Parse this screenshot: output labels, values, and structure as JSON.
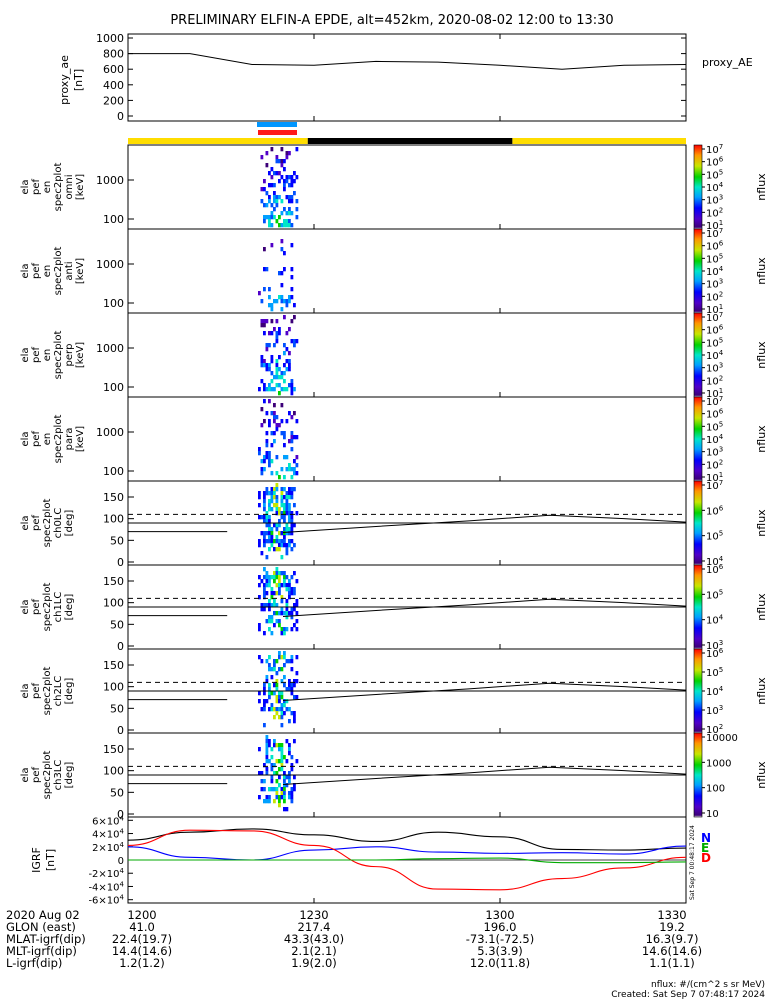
{
  "title": "PRELIMINARY ELFIN-A EPDE, alt=452km, 2020-08-02 12:00 to 13:30",
  "colors": {
    "science_zone_bar": "#ffdd00",
    "eclipse_bar": "#000000",
    "fgm_bar_blue": "#0096ff",
    "fgm_bar_red": "#ff1a1a",
    "igrf_n": "#000000",
    "igrf_e": "#0000ff",
    "igrf_z": "#ff0000",
    "igrf_d": "#00aa00"
  },
  "time_axis": {
    "ticks": [
      "1200",
      "1230",
      "1300",
      "1330"
    ],
    "start": "12:00",
    "end": "13:30"
  },
  "ephemeris": {
    "date_label": "2020 Aug 02",
    "rows": [
      {
        "label": "GLON (east)",
        "values": [
          "41.0",
          "217.4",
          "196.0",
          "19.2"
        ]
      },
      {
        "label": "MLAT-igrf(dip)",
        "values": [
          "22.4(19.7)",
          "43.3(43.0)",
          "-73.1(-72.5)",
          "16.3(9.7)"
        ]
      },
      {
        "label": "MLT-igrf(dip)",
        "values": [
          "14.4(14.6)",
          "2.1(2.1)",
          "5.3(3.9)",
          "14.6(14.6)"
        ]
      },
      {
        "label": "L-igrf(dip)",
        "values": [
          "1.2(1.2)",
          "1.9(2.0)",
          "12.0(11.8)",
          "1.1(1.1)"
        ]
      }
    ]
  },
  "footer": {
    "units": "nflux: #/(cm^2 s sr MeV)",
    "created": "Created: Sat Sep  7 07:48:17 2024",
    "side_stamp": "Sat Sep  7 00:48:17 2024"
  },
  "chart_data": [
    {
      "type": "line",
      "ylabel": "proxy_ae [nT]",
      "series": [
        {
          "name": "proxy_AE",
          "x_min": [
            0,
            10,
            20,
            30,
            40,
            50,
            60,
            70,
            80,
            90
          ],
          "values": [
            800,
            800,
            660,
            650,
            700,
            690,
            650,
            600,
            650,
            660
          ]
        }
      ],
      "yticks": [
        "1000",
        "800",
        "600",
        "400",
        "200",
        "0"
      ],
      "ylim": [
        0,
        1100
      ]
    },
    {
      "type": "heatmap",
      "ylabel": "ela pef en spec2plot omni [keV]",
      "yticks": [
        "1000",
        "100"
      ],
      "cbar_label": "nflux",
      "cbar_ticks": [
        "10^1",
        "10^2",
        "10^3",
        "10^4",
        "10^5",
        "10^6",
        "10^7"
      ]
    },
    {
      "type": "heatmap",
      "ylabel": "ela pef en spec2plot anti [keV]",
      "yticks": [
        "1000",
        "100"
      ],
      "cbar_label": "nflux",
      "cbar_ticks": [
        "10^1",
        "10^2",
        "10^3",
        "10^4",
        "10^5",
        "10^6",
        "10^7"
      ]
    },
    {
      "type": "heatmap",
      "ylabel": "ela pef en spec2plot perp [keV]",
      "yticks": [
        "1000",
        "100"
      ],
      "cbar_label": "nflux",
      "cbar_ticks": [
        "10^1",
        "10^2",
        "10^3",
        "10^4",
        "10^5",
        "10^6",
        "10^7"
      ]
    },
    {
      "type": "heatmap",
      "ylabel": "ela pef en spec2plot para [keV]",
      "yticks": [
        "1000",
        "100"
      ],
      "cbar_label": "nflux",
      "cbar_ticks": [
        "10^1",
        "10^2",
        "10^3",
        "10^4",
        "10^5",
        "10^6",
        "10^7"
      ]
    },
    {
      "type": "heatmap",
      "ylabel": "ela pef spec2plot ch0LC [deg]",
      "yticks": [
        "150",
        "100",
        "50",
        "0"
      ],
      "cbar_label": "nflux",
      "cbar_ticks": [
        "10^4",
        "10^5",
        "10^6",
        "10^7"
      ]
    },
    {
      "type": "heatmap",
      "ylabel": "ela pef spec2plot ch1LC [deg]",
      "yticks": [
        "150",
        "100",
        "50",
        "0"
      ],
      "cbar_label": "nflux",
      "cbar_ticks": [
        "10^3",
        "10^4",
        "10^5",
        "10^6"
      ]
    },
    {
      "type": "heatmap",
      "ylabel": "ela pef spec2plot ch2LC [deg]",
      "yticks": [
        "150",
        "100",
        "50",
        "0"
      ],
      "cbar_label": "nflux",
      "cbar_ticks": [
        "10^2",
        "10^3",
        "10^4",
        "10^5",
        "10^6"
      ]
    },
    {
      "type": "heatmap",
      "ylabel": "ela pef spec2plot ch3LC [deg]",
      "yticks": [
        "150",
        "100",
        "50",
        "0"
      ],
      "cbar_label": "nflux",
      "cbar_ticks": [
        "10",
        "100",
        "1000",
        "10000"
      ]
    },
    {
      "type": "line",
      "ylabel": "IGRF [nT]",
      "yticks": [
        "6x10^4",
        "4x10^4",
        "2x10^4",
        "0",
        "-2x10^4",
        "-4x10^4",
        "-6x10^4"
      ],
      "legend": [
        "N",
        "E",
        "D"
      ],
      "ylim": [
        -65000,
        65000
      ],
      "series": [
        {
          "name": "N",
          "x_min": [
            0,
            10,
            20,
            30,
            40,
            50,
            60,
            70,
            80,
            90
          ],
          "values": [
            30000,
            42000,
            47000,
            38000,
            28000,
            42000,
            35000,
            16000,
            15000,
            18000
          ]
        },
        {
          "name": "E",
          "x_min": [
            0,
            10,
            20,
            30,
            40,
            50,
            60,
            70,
            80,
            90
          ],
          "values": [
            20000,
            4000,
            0,
            15000,
            20000,
            12000,
            10000,
            11000,
            9000,
            21000
          ]
        },
        {
          "name": "Z",
          "x_min": [
            0,
            10,
            20,
            30,
            40,
            50,
            60,
            70,
            80,
            90
          ],
          "values": [
            22000,
            45000,
            44000,
            22000,
            -10000,
            -44000,
            -45000,
            -28000,
            -12000,
            4000
          ]
        },
        {
          "name": "D",
          "x_min": [
            0,
            10,
            20,
            30,
            40,
            50,
            60,
            70,
            80,
            90
          ],
          "values": [
            0,
            0,
            0,
            0,
            0,
            2000,
            3000,
            -4000,
            -4000,
            -3000
          ]
        }
      ]
    }
  ]
}
